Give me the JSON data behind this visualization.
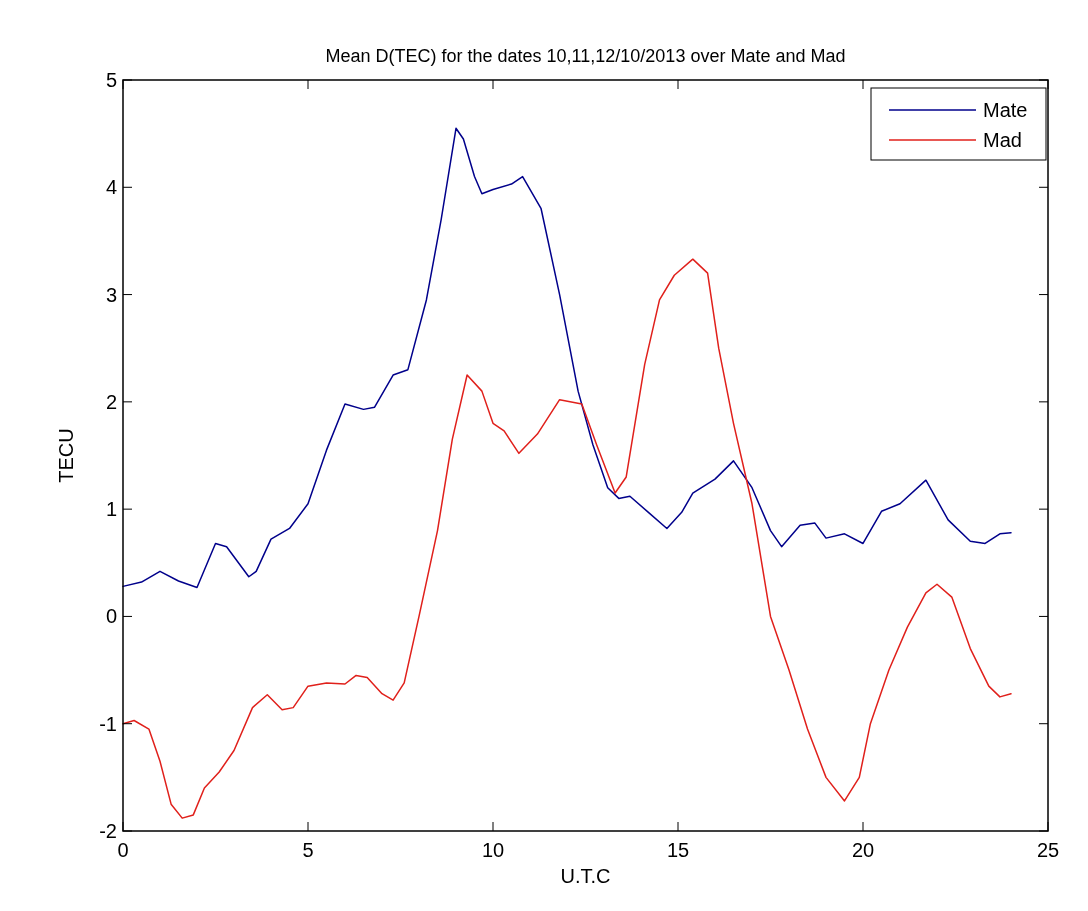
{
  "chart_data": {
    "type": "line",
    "title": "Mean D(TEC)  for the dates 10,11,12/10/2013 over Mate and Mad",
    "xlabel": "U.T.C",
    "ylabel": "TECU",
    "xlim": [
      0,
      25
    ],
    "xticks": [
      0,
      5,
      10,
      15,
      20,
      25
    ],
    "ylim": [
      -2,
      5
    ],
    "yticks": [
      -2,
      -1,
      0,
      1,
      2,
      3,
      4,
      5
    ],
    "grid": false,
    "legend": "top right",
    "line_style": "solid",
    "marker": "none",
    "series": [
      {
        "name": "Mate",
        "color": "#00008b",
        "x": [
          0,
          0.5,
          1,
          1.5,
          2,
          2.5,
          2.8,
          3.4,
          3.6,
          4,
          4.5,
          5,
          5.5,
          6,
          6.5,
          6.8,
          7.3,
          7.7,
          8.2,
          8.6,
          9,
          9.2,
          9.5,
          9.7,
          10,
          10.5,
          10.8,
          11.3,
          11.8,
          12.3,
          12.7,
          13.1,
          13.4,
          13.7,
          14.2,
          14.7,
          15.1,
          15.4,
          16,
          16.5,
          17,
          17.5,
          17.8,
          18.3,
          18.7,
          19,
          19.5,
          20,
          20.5,
          21,
          21.7,
          22.3,
          22.9,
          23.3,
          23.7,
          24
        ],
        "values": [
          0.28,
          0.32,
          0.42,
          0.33,
          0.27,
          0.68,
          0.65,
          0.37,
          0.42,
          0.72,
          0.82,
          1.05,
          1.55,
          1.98,
          1.93,
          1.95,
          2.25,
          2.3,
          2.95,
          3.7,
          4.55,
          4.45,
          4.1,
          3.94,
          3.98,
          4.03,
          4.1,
          3.8,
          3.0,
          2.1,
          1.6,
          1.2,
          1.1,
          1.12,
          0.97,
          0.82,
          0.97,
          1.15,
          1.28,
          1.45,
          1.2,
          0.8,
          0.65,
          0.85,
          0.87,
          0.73,
          0.77,
          0.68,
          0.98,
          1.05,
          1.27,
          0.9,
          0.7,
          0.68,
          0.77,
          0.78
        ]
      },
      {
        "name": "Mad",
        "color": "#e0201b",
        "x": [
          0,
          0.3,
          0.7,
          1,
          1.3,
          1.6,
          1.9,
          2.2,
          2.6,
          3,
          3.5,
          3.9,
          4.3,
          4.6,
          5,
          5.5,
          6,
          6.3,
          6.6,
          7,
          7.3,
          7.6,
          8,
          8.5,
          8.9,
          9.3,
          9.7,
          10,
          10.3,
          10.7,
          11.2,
          11.8,
          12.4,
          12.8,
          13.3,
          13.6,
          14.1,
          14.5,
          14.9,
          15.4,
          15.8,
          16.1,
          16.5,
          17,
          17.5,
          18,
          18.5,
          19,
          19.5,
          19.9,
          20.2,
          20.7,
          21.2,
          21.7,
          22,
          22.4,
          22.9,
          23.4,
          23.7,
          24
        ],
        "values": [
          -1.0,
          -0.97,
          -1.05,
          -1.35,
          -1.75,
          -1.88,
          -1.85,
          -1.6,
          -1.45,
          -1.25,
          -0.85,
          -0.73,
          -0.87,
          -0.85,
          -0.65,
          -0.62,
          -0.63,
          -0.55,
          -0.57,
          -0.72,
          -0.78,
          -0.62,
          0.0,
          0.8,
          1.65,
          2.25,
          2.1,
          1.8,
          1.73,
          1.52,
          1.7,
          2.02,
          1.98,
          1.6,
          1.15,
          1.3,
          2.35,
          2.95,
          3.18,
          3.33,
          3.2,
          2.5,
          1.8,
          1.05,
          0.0,
          -0.5,
          -1.05,
          -1.5,
          -1.72,
          -1.5,
          -1.0,
          -0.5,
          -0.1,
          0.22,
          0.3,
          0.18,
          -0.3,
          -0.65,
          -0.75,
          -0.72
        ]
      }
    ]
  }
}
